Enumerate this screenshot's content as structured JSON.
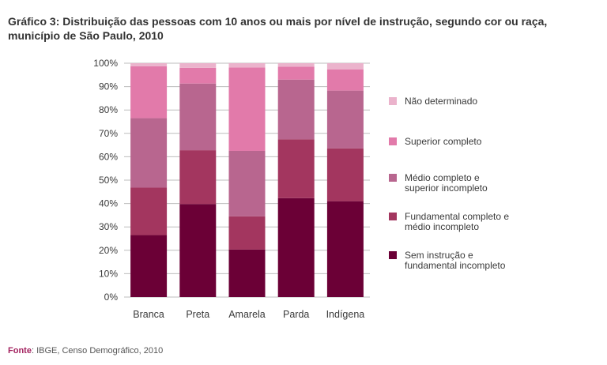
{
  "title": "Gráfico 3: Distribuição das pessoas com 10 anos ou mais por nível de instrução, segundo cor ou raça, município de São Paulo, 2010",
  "source": {
    "label": "Fonte",
    "text": ": IBGE, Censo Demográfico, 2010"
  },
  "colors": {
    "sem_instrucao": "#6b0036",
    "fundamental": "#a3365f",
    "medio": "#b8668f",
    "superior": "#e27aaa",
    "nao_determinado": "#ebb3cc"
  },
  "chart_data": {
    "type": "bar",
    "stacked": true,
    "categories": [
      "Branca",
      "Preta",
      "Amarela",
      "Parda",
      "Indígena"
    ],
    "series": [
      {
        "name": "Sem instrução e fundamental incompleto",
        "color_key": "sem_instrucao",
        "values": [
          26.5,
          39.8,
          20.3,
          42.3,
          41.0
        ]
      },
      {
        "name": "Fundamental completo e médio incompleto",
        "color_key": "fundamental",
        "values": [
          20.3,
          23.0,
          14.2,
          25.2,
          22.6
        ]
      },
      {
        "name": "Médio completo e superior incompleto",
        "color_key": "medio",
        "values": [
          29.7,
          28.5,
          28.0,
          25.5,
          24.7
        ]
      },
      {
        "name": "Superior completo",
        "color_key": "superior",
        "values": [
          22.2,
          6.7,
          35.7,
          5.5,
          9.0
        ]
      },
      {
        "name": "Não determinado",
        "color_key": "nao_determinado",
        "values": [
          1.3,
          2.0,
          1.8,
          1.5,
          2.7
        ]
      }
    ],
    "legend_order": [
      4,
      3,
      2,
      1,
      0
    ],
    "yticks": [
      "0%",
      "10%",
      "20%",
      "30%",
      "40%",
      "50%",
      "60%",
      "70%",
      "80%",
      "90%",
      "100%"
    ],
    "ylim": [
      0,
      100
    ],
    "ylabel": "",
    "xlabel": "",
    "grid": true,
    "legend_position": "right"
  }
}
